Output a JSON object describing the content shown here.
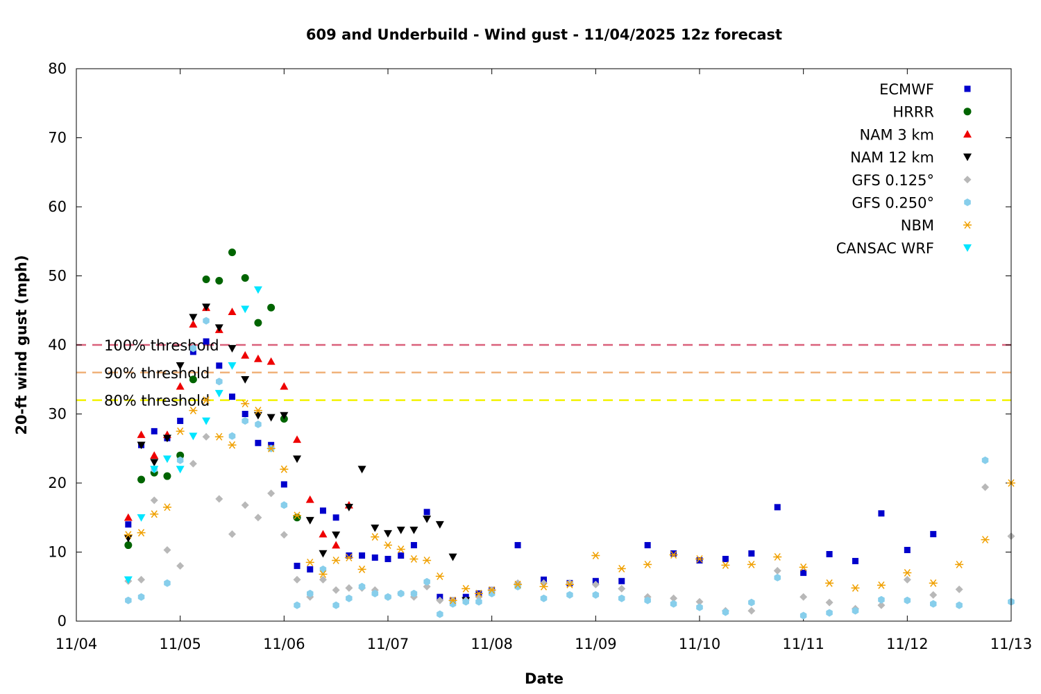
{
  "chart_data": {
    "type": "scatter",
    "title": "609 and Underbuild - Wind gust - 11/04/2025 12z forecast",
    "xlabel": "Date",
    "ylabel": "20-ft wind gust (mph)",
    "xlim": [
      "2025-11-04T00:00",
      "2025-11-13T00:00"
    ],
    "ylim": [
      0,
      80
    ],
    "x_ticks": [
      "11/04",
      "11/05",
      "11/06",
      "11/07",
      "11/08",
      "11/09",
      "11/10",
      "11/11",
      "11/12",
      "11/13"
    ],
    "y_ticks": [
      0,
      10,
      20,
      30,
      40,
      50,
      60,
      70,
      80
    ],
    "grid": false,
    "legend_position": "top-right",
    "thresholds": [
      {
        "label": "100% threshold",
        "value": 40,
        "color": "#d9607a"
      },
      {
        "label": "90% threshold",
        "value": 36,
        "color": "#f0b27a"
      },
      {
        "label": "80% threshold",
        "value": 32,
        "color": "#f2f200"
      }
    ],
    "series": [
      {
        "name": "ECMWF",
        "marker": "square",
        "color": "#0000cc",
        "x": [
          "2025-11-04T12:00",
          "2025-11-04T15:00",
          "2025-11-04T18:00",
          "2025-11-04T21:00",
          "2025-11-05T00:00",
          "2025-11-05T03:00",
          "2025-11-05T06:00",
          "2025-11-05T09:00",
          "2025-11-05T12:00",
          "2025-11-05T15:00",
          "2025-11-05T18:00",
          "2025-11-05T21:00",
          "2025-11-06T00:00",
          "2025-11-06T03:00",
          "2025-11-06T06:00",
          "2025-11-06T09:00",
          "2025-11-06T12:00",
          "2025-11-06T15:00",
          "2025-11-06T18:00",
          "2025-11-06T21:00",
          "2025-11-07T00:00",
          "2025-11-07T03:00",
          "2025-11-07T06:00",
          "2025-11-07T09:00",
          "2025-11-07T12:00",
          "2025-11-07T15:00",
          "2025-11-07T18:00",
          "2025-11-07T21:00",
          "2025-11-08T00:00",
          "2025-11-08T06:00",
          "2025-11-08T12:00",
          "2025-11-08T18:00",
          "2025-11-09T00:00",
          "2025-11-09T06:00",
          "2025-11-09T12:00",
          "2025-11-09T18:00",
          "2025-11-10T00:00",
          "2025-11-10T06:00",
          "2025-11-10T12:00",
          "2025-11-10T18:00",
          "2025-11-11T00:00",
          "2025-11-11T06:00",
          "2025-11-11T12:00",
          "2025-11-11T18:00",
          "2025-11-12T00:00",
          "2025-11-12T06:00"
        ],
        "y": [
          14,
          25.5,
          27.5,
          26.5,
          29,
          39,
          40.5,
          37,
          32.5,
          30,
          25.8,
          25.5,
          19.8,
          8,
          7.5,
          16,
          15,
          9.5,
          9.5,
          9.2,
          9,
          9.5,
          11,
          15.8,
          3.5,
          3,
          3.5,
          4,
          4.5,
          11,
          6,
          5.5,
          5.8,
          5.8,
          11,
          9.8,
          8.8,
          9,
          9.8,
          16.5,
          7,
          9.7,
          8.7,
          15.6,
          10.3,
          12.6
        ]
      },
      {
        "name": "HRRR",
        "marker": "circle",
        "color": "#006400",
        "x": [
          "2025-11-04T12:00",
          "2025-11-04T15:00",
          "2025-11-04T18:00",
          "2025-11-04T21:00",
          "2025-11-05T00:00",
          "2025-11-05T03:00",
          "2025-11-05T06:00",
          "2025-11-05T09:00",
          "2025-11-05T12:00",
          "2025-11-05T15:00",
          "2025-11-05T18:00",
          "2025-11-05T21:00",
          "2025-11-06T00:00",
          "2025-11-06T03:00"
        ],
        "y": [
          11,
          20.5,
          21.5,
          21,
          24,
          35,
          49.5,
          49.3,
          53.4,
          49.7,
          43.2,
          45.4,
          29.3,
          15
        ]
      },
      {
        "name": "NAM 3 km",
        "marker": "triangle-up",
        "color": "#ee0000",
        "x": [
          "2025-11-04T12:00",
          "2025-11-04T15:00",
          "2025-11-04T18:00",
          "2025-11-04T21:00",
          "2025-11-05T00:00",
          "2025-11-05T03:00",
          "2025-11-05T06:00",
          "2025-11-05T09:00",
          "2025-11-05T12:00",
          "2025-11-05T15:00",
          "2025-11-05T18:00",
          "2025-11-05T21:00",
          "2025-11-06T00:00",
          "2025-11-06T03:00",
          "2025-11-06T06:00",
          "2025-11-06T09:00",
          "2025-11-06T12:00",
          "2025-11-06T15:00"
        ],
        "y": [
          15,
          27,
          24,
          27,
          34,
          43,
          45.4,
          42.2,
          44.8,
          38.5,
          38,
          37.6,
          34,
          26.3,
          17.6,
          12.6,
          11,
          16.8
        ]
      },
      {
        "name": "NAM 12 km",
        "marker": "triangle-down",
        "color": "#000000",
        "x": [
          "2025-11-04T12:00",
          "2025-11-04T15:00",
          "2025-11-04T18:00",
          "2025-11-04T21:00",
          "2025-11-05T00:00",
          "2025-11-05T03:00",
          "2025-11-05T06:00",
          "2025-11-05T09:00",
          "2025-11-05T12:00",
          "2025-11-05T15:00",
          "2025-11-05T18:00",
          "2025-11-05T21:00",
          "2025-11-06T00:00",
          "2025-11-06T03:00",
          "2025-11-06T06:00",
          "2025-11-06T09:00",
          "2025-11-06T12:00",
          "2025-11-06T15:00",
          "2025-11-06T18:00",
          "2025-11-06T21:00",
          "2025-11-07T00:00",
          "2025-11-07T03:00",
          "2025-11-07T06:00",
          "2025-11-07T09:00",
          "2025-11-07T12:00",
          "2025-11-07T15:00",
          "2025-11-07T18:00"
        ],
        "y": [
          12,
          25.5,
          23,
          26.5,
          37,
          44,
          45.5,
          42.5,
          39.5,
          35,
          29.8,
          29.5,
          29.8,
          23.5,
          14.6,
          9.8,
          12.5,
          16.5,
          22,
          13.5,
          12.7,
          13.2,
          13.2,
          14.8,
          14,
          9.3,
          3
        ]
      },
      {
        "name": "GFS 0.125°",
        "marker": "diamond",
        "color": "#b8b8b8",
        "x": [
          "2025-11-04T12:00",
          "2025-11-04T15:00",
          "2025-11-04T18:00",
          "2025-11-04T21:00",
          "2025-11-05T00:00",
          "2025-11-05T03:00",
          "2025-11-05T06:00",
          "2025-11-05T09:00",
          "2025-11-05T12:00",
          "2025-11-05T15:00",
          "2025-11-05T18:00",
          "2025-11-05T21:00",
          "2025-11-06T00:00",
          "2025-11-06T03:00",
          "2025-11-06T06:00",
          "2025-11-06T09:00",
          "2025-11-06T12:00",
          "2025-11-06T15:00",
          "2025-11-06T18:00",
          "2025-11-06T21:00",
          "2025-11-07T00:00",
          "2025-11-07T03:00",
          "2025-11-07T06:00",
          "2025-11-07T09:00",
          "2025-11-07T12:00",
          "2025-11-07T15:00",
          "2025-11-07T18:00",
          "2025-11-07T21:00",
          "2025-11-08T00:00",
          "2025-11-08T06:00",
          "2025-11-08T12:00",
          "2025-11-08T18:00",
          "2025-11-09T00:00",
          "2025-11-09T06:00",
          "2025-11-09T12:00",
          "2025-11-09T18:00",
          "2025-11-10T00:00",
          "2025-11-10T06:00",
          "2025-11-10T12:00",
          "2025-11-10T18:00",
          "2025-11-11T00:00",
          "2025-11-11T06:00",
          "2025-11-11T12:00",
          "2025-11-11T18:00",
          "2025-11-12T00:00",
          "2025-11-12T06:00",
          "2025-11-12T12:00",
          "2025-11-12T18:00",
          "2025-11-13T00:00"
        ],
        "y": [
          5.8,
          6,
          17.5,
          10.3,
          8,
          22.8,
          26.7,
          17.7,
          12.6,
          16.8,
          15,
          18.5,
          12.5,
          6,
          3.5,
          6,
          4.5,
          4.8,
          4.8,
          4.5,
          3.5,
          4,
          3.5,
          5,
          3,
          3,
          3,
          3.5,
          4.5,
          5.5,
          5.5,
          5.5,
          5.3,
          4.7,
          3.5,
          3.3,
          2.8,
          1.5,
          1.5,
          7.3,
          3.5,
          2.7,
          1.8,
          2.3,
          6,
          3.8,
          4.6,
          19.4,
          12.3
        ]
      },
      {
        "name": "GFS 0.250°",
        "marker": "hexagon",
        "color": "#87ceeb",
        "x": [
          "2025-11-04T12:00",
          "2025-11-04T15:00",
          "2025-11-04T18:00",
          "2025-11-04T21:00",
          "2025-11-05T00:00",
          "2025-11-05T03:00",
          "2025-11-05T06:00",
          "2025-11-05T09:00",
          "2025-11-05T12:00",
          "2025-11-05T15:00",
          "2025-11-05T18:00",
          "2025-11-05T21:00",
          "2025-11-06T00:00",
          "2025-11-06T03:00",
          "2025-11-06T06:00",
          "2025-11-06T09:00",
          "2025-11-06T12:00",
          "2025-11-06T15:00",
          "2025-11-06T18:00",
          "2025-11-06T21:00",
          "2025-11-07T00:00",
          "2025-11-07T03:00",
          "2025-11-07T06:00",
          "2025-11-07T09:00",
          "2025-11-07T12:00",
          "2025-11-07T15:00",
          "2025-11-07T18:00",
          "2025-11-07T21:00",
          "2025-11-08T00:00",
          "2025-11-08T06:00",
          "2025-11-08T12:00",
          "2025-11-08T18:00",
          "2025-11-09T00:00",
          "2025-11-09T06:00",
          "2025-11-09T12:00",
          "2025-11-09T18:00",
          "2025-11-10T00:00",
          "2025-11-10T06:00",
          "2025-11-10T12:00",
          "2025-11-10T18:00",
          "2025-11-11T00:00",
          "2025-11-11T06:00",
          "2025-11-11T12:00",
          "2025-11-11T18:00",
          "2025-11-12T00:00",
          "2025-11-12T06:00",
          "2025-11-12T12:00",
          "2025-11-12T18:00",
          "2025-11-13T00:00"
        ],
        "y": [
          3,
          3.5,
          22,
          5.5,
          23.3,
          39.5,
          43.5,
          34.7,
          26.8,
          29,
          28.5,
          25,
          16.8,
          2.3,
          4,
          7.5,
          2.3,
          3.3,
          5,
          4,
          3.5,
          4,
          4,
          5.7,
          1,
          2.5,
          2.8,
          2.8,
          4,
          5,
          3.3,
          3.8,
          3.8,
          3.3,
          3,
          2.5,
          2,
          1.3,
          2.7,
          6.3,
          0.8,
          1.2,
          1.5,
          3.1,
          3,
          2.5,
          2.3,
          23.3,
          2.8
        ]
      },
      {
        "name": "NBM",
        "marker": "asterisk",
        "color": "#f0a000",
        "x": [
          "2025-11-04T12:00",
          "2025-11-04T15:00",
          "2025-11-04T18:00",
          "2025-11-04T21:00",
          "2025-11-05T00:00",
          "2025-11-05T03:00",
          "2025-11-05T06:00",
          "2025-11-05T09:00",
          "2025-11-05T12:00",
          "2025-11-05T15:00",
          "2025-11-05T18:00",
          "2025-11-05T21:00",
          "2025-11-06T00:00",
          "2025-11-06T03:00",
          "2025-11-06T06:00",
          "2025-11-06T09:00",
          "2025-11-06T12:00",
          "2025-11-06T15:00",
          "2025-11-06T18:00",
          "2025-11-06T21:00",
          "2025-11-07T00:00",
          "2025-11-07T03:00",
          "2025-11-07T06:00",
          "2025-11-07T09:00",
          "2025-11-07T12:00",
          "2025-11-07T15:00",
          "2025-11-07T18:00",
          "2025-11-07T21:00",
          "2025-11-08T00:00",
          "2025-11-08T06:00",
          "2025-11-08T12:00",
          "2025-11-08T18:00",
          "2025-11-09T00:00",
          "2025-11-09T06:00",
          "2025-11-09T12:00",
          "2025-11-09T18:00",
          "2025-11-10T00:00",
          "2025-11-10T06:00",
          "2025-11-10T12:00",
          "2025-11-10T18:00",
          "2025-11-11T00:00",
          "2025-11-11T06:00",
          "2025-11-11T12:00",
          "2025-11-11T18:00",
          "2025-11-12T00:00",
          "2025-11-12T06:00",
          "2025-11-12T12:00",
          "2025-11-12T18:00",
          "2025-11-13T00:00"
        ],
        "y": [
          12.5,
          12.8,
          15.5,
          16.5,
          27.5,
          30.5,
          32,
          26.7,
          25.5,
          31.5,
          30.5,
          25,
          22,
          15.3,
          8.5,
          6.8,
          8.8,
          9.2,
          7.5,
          12.2,
          11,
          10.4,
          9,
          8.8,
          6.5,
          3,
          4.7,
          4,
          4.5,
          5.3,
          5,
          5.3,
          9.5,
          7.6,
          8.2,
          9.6,
          9,
          8.1,
          8.2,
          9.3,
          7.8,
          5.5,
          4.8,
          5.2,
          7,
          5.5,
          8.2,
          11.8,
          20
        ]
      },
      {
        "name": "CANSAC WRF",
        "marker": "triangle-down",
        "color": "#00e5ff",
        "x": [
          "2025-11-04T12:00",
          "2025-11-04T15:00",
          "2025-11-04T18:00",
          "2025-11-04T21:00",
          "2025-11-05T00:00",
          "2025-11-05T03:00",
          "2025-11-05T06:00",
          "2025-11-05T09:00",
          "2025-11-05T12:00",
          "2025-11-05T15:00",
          "2025-11-05T18:00"
        ],
        "y": [
          6,
          15,
          22,
          23.5,
          22,
          26.8,
          29,
          33,
          37,
          45.2,
          48
        ]
      }
    ]
  }
}
